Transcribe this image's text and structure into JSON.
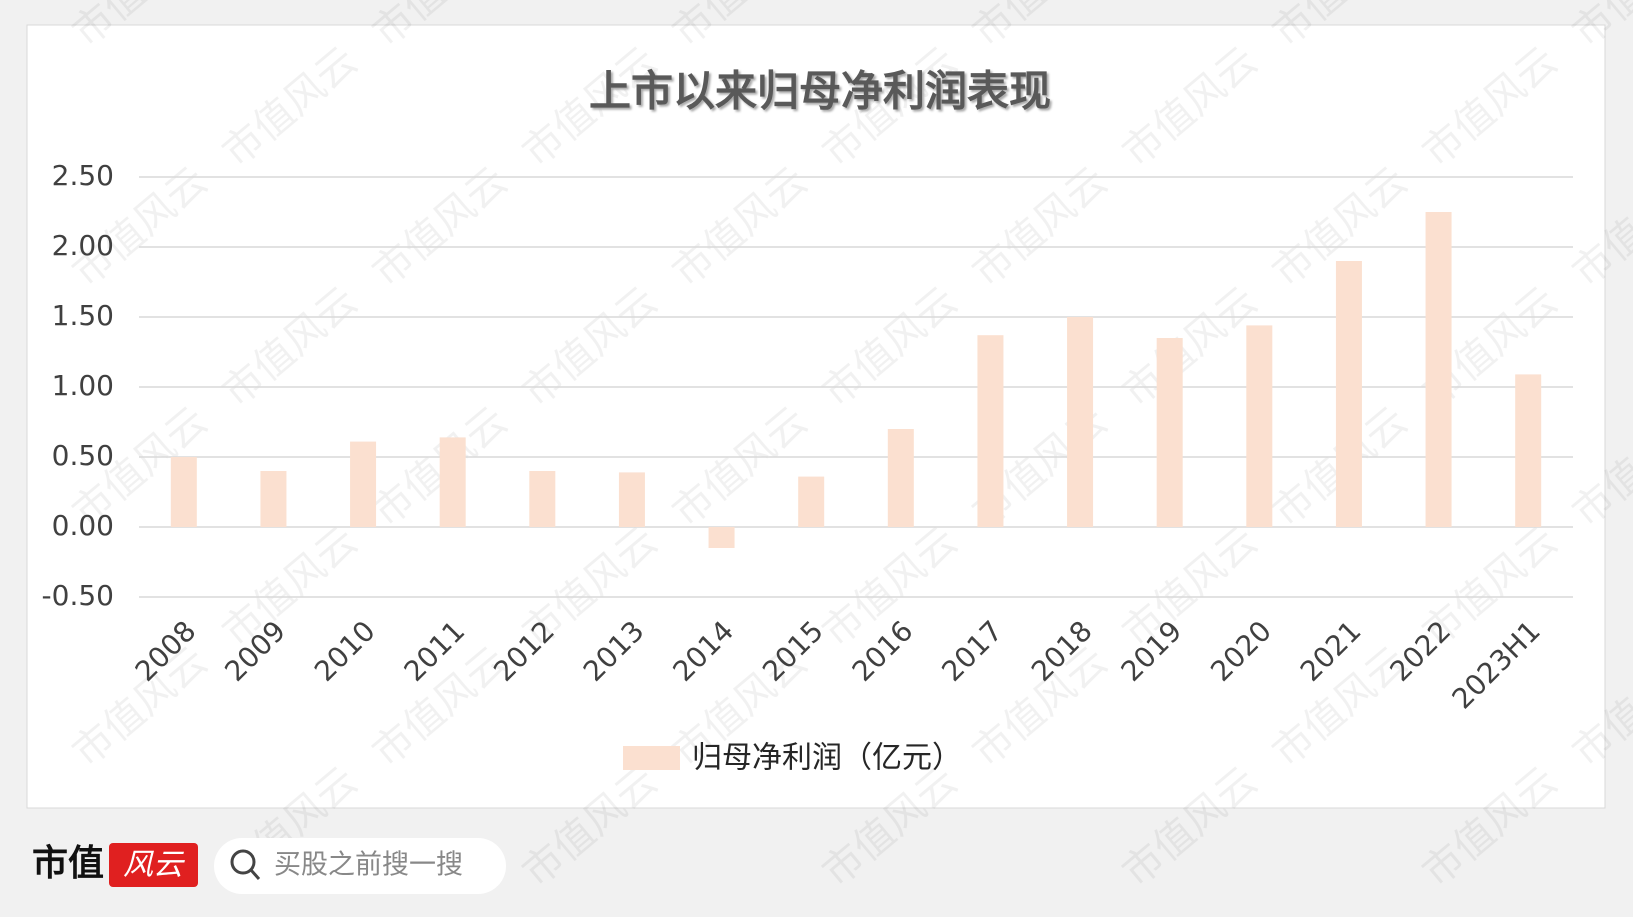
{
  "chart_data": {
    "type": "bar",
    "title": "上市以来归母净利润表现",
    "categories": [
      "2008",
      "2009",
      "2010",
      "2011",
      "2012",
      "2013",
      "2014",
      "2015",
      "2016",
      "2017",
      "2018",
      "2019",
      "2020",
      "2021",
      "2022",
      "2023H1"
    ],
    "series": [
      {
        "name": "归母净利润（亿元）",
        "color": "#fbe0d0",
        "values": [
          0.5,
          0.4,
          0.61,
          0.64,
          0.4,
          0.39,
          -0.15,
          0.36,
          0.7,
          1.37,
          1.5,
          1.35,
          1.44,
          1.9,
          2.25,
          1.09
        ]
      }
    ],
    "ylim": [
      -0.5,
      2.5
    ],
    "yticks": [
      {
        "value": -0.5,
        "label": "-0.50"
      },
      {
        "value": 0,
        "label": "0.00"
      },
      {
        "value": 0.5,
        "label": "0.50"
      },
      {
        "value": 1,
        "label": "1.00"
      },
      {
        "value": 1.5,
        "label": "1.50"
      },
      {
        "value": 2,
        "label": "2.00"
      },
      {
        "value": 2.5,
        "label": "2.50"
      }
    ],
    "grid": true,
    "legend": "bottom"
  },
  "footer": {
    "brand": "市值",
    "logo": "风云",
    "search": "买股之前搜一搜"
  },
  "watermark": "市值风云"
}
